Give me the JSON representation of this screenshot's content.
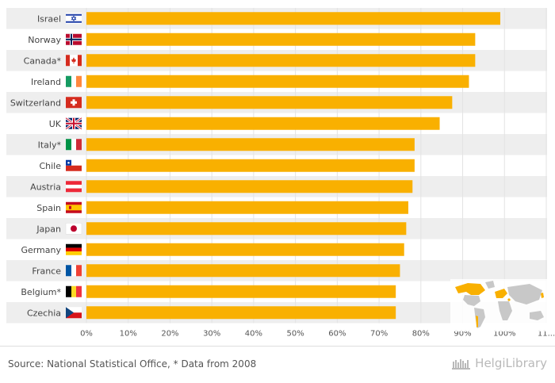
{
  "chart_data": {
    "type": "bar",
    "orientation": "horizontal",
    "categories": [
      "Israel",
      "Norway",
      "Canada*",
      "Ireland",
      "Switzerland",
      "UK",
      "Italy*",
      "Chile",
      "Austria",
      "Spain",
      "Japan",
      "Germany",
      "France",
      "Belgium*",
      "Czechia"
    ],
    "values": [
      99,
      93,
      93,
      91.5,
      87.5,
      84.5,
      78.5,
      78.5,
      78,
      77,
      76.5,
      76,
      75,
      74,
      74
    ],
    "xlim": [
      0,
      110
    ],
    "x_ticks": [
      "0%",
      "10%",
      "20%",
      "30%",
      "40%",
      "50%",
      "60%",
      "70%",
      "80%",
      "90%",
      "100%",
      "11..."
    ],
    "bar_color": "#f9b000",
    "grid": true,
    "legend": "none",
    "flags": [
      "israel-flag-icon",
      "norway-flag-icon",
      "canada-flag-icon",
      "ireland-flag-icon",
      "switzerland-flag-icon",
      "uk-flag-icon",
      "italy-flag-icon",
      "chile-flag-icon",
      "austria-flag-icon",
      "spain-flag-icon",
      "japan-flag-icon",
      "germany-flag-icon",
      "france-flag-icon",
      "belgium-flag-icon",
      "czechia-flag-icon"
    ],
    "inset": "world-map-icon"
  },
  "footer": {
    "source": "Source: National Statistical Office, * Data from 2008",
    "brand": "HelgiLibrary"
  },
  "colors": {
    "bar": "#f9b000",
    "row_alt": "#eeeeee",
    "map_land": "#c8c8c8",
    "map_highlight": "#f9b000"
  }
}
